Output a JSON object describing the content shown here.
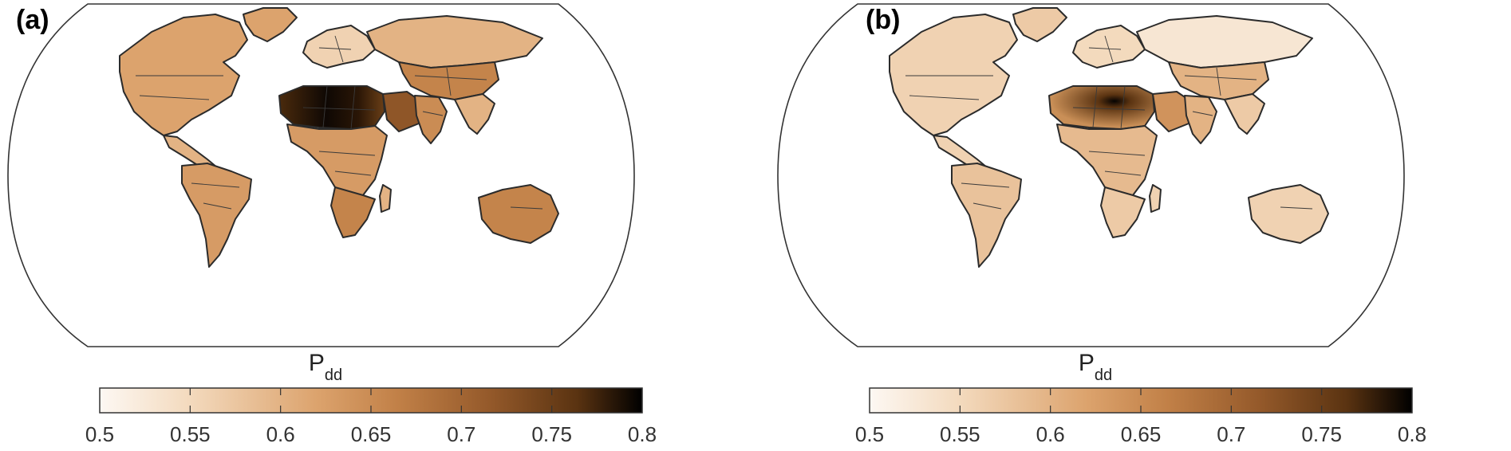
{
  "panels": [
    {
      "label": "(a)",
      "colorbar_title": "P",
      "colorbar_title_sub": "dd",
      "colorbar_ticks": [
        "0.5",
        "0.55",
        "0.6",
        "0.65",
        "0.7",
        "0.75",
        "0.8"
      ],
      "range": [
        0.5,
        0.8
      ]
    },
    {
      "label": "(b)",
      "colorbar_title": "P",
      "colorbar_title_sub": "dd",
      "colorbar_ticks": [
        "0.5",
        "0.55",
        "0.6",
        "0.65",
        "0.7",
        "0.75",
        "0.8"
      ],
      "range": [
        0.5,
        0.8
      ]
    }
  ],
  "colormap": {
    "stops": [
      "#fdf8f3",
      "#f3d9bc",
      "#dca36d",
      "#c18047",
      "#94592a",
      "#5a3311",
      "#000000"
    ]
  },
  "region_values": {
    "a": {
      "north_america": 0.62,
      "central_america": 0.6,
      "south_america": 0.63,
      "greenland": 0.62,
      "europe": 0.56,
      "sahara": 0.78,
      "arabia": 0.72,
      "central_africa": 0.63,
      "southern_africa": 0.66,
      "russia": 0.6,
      "central_asia": 0.66,
      "india": 0.65,
      "southeast_asia": 0.6,
      "australia": 0.66,
      "madagascar": 0.6
    },
    "b": {
      "north_america": 0.56,
      "central_america": 0.56,
      "south_america": 0.58,
      "greenland": 0.57,
      "europe": 0.55,
      "sahara": 0.68,
      "arabia": 0.64,
      "central_africa": 0.59,
      "southern_africa": 0.57,
      "russia": 0.53,
      "central_asia": 0.6,
      "india": 0.6,
      "southeast_asia": 0.57,
      "australia": 0.56,
      "madagascar": 0.56
    }
  }
}
